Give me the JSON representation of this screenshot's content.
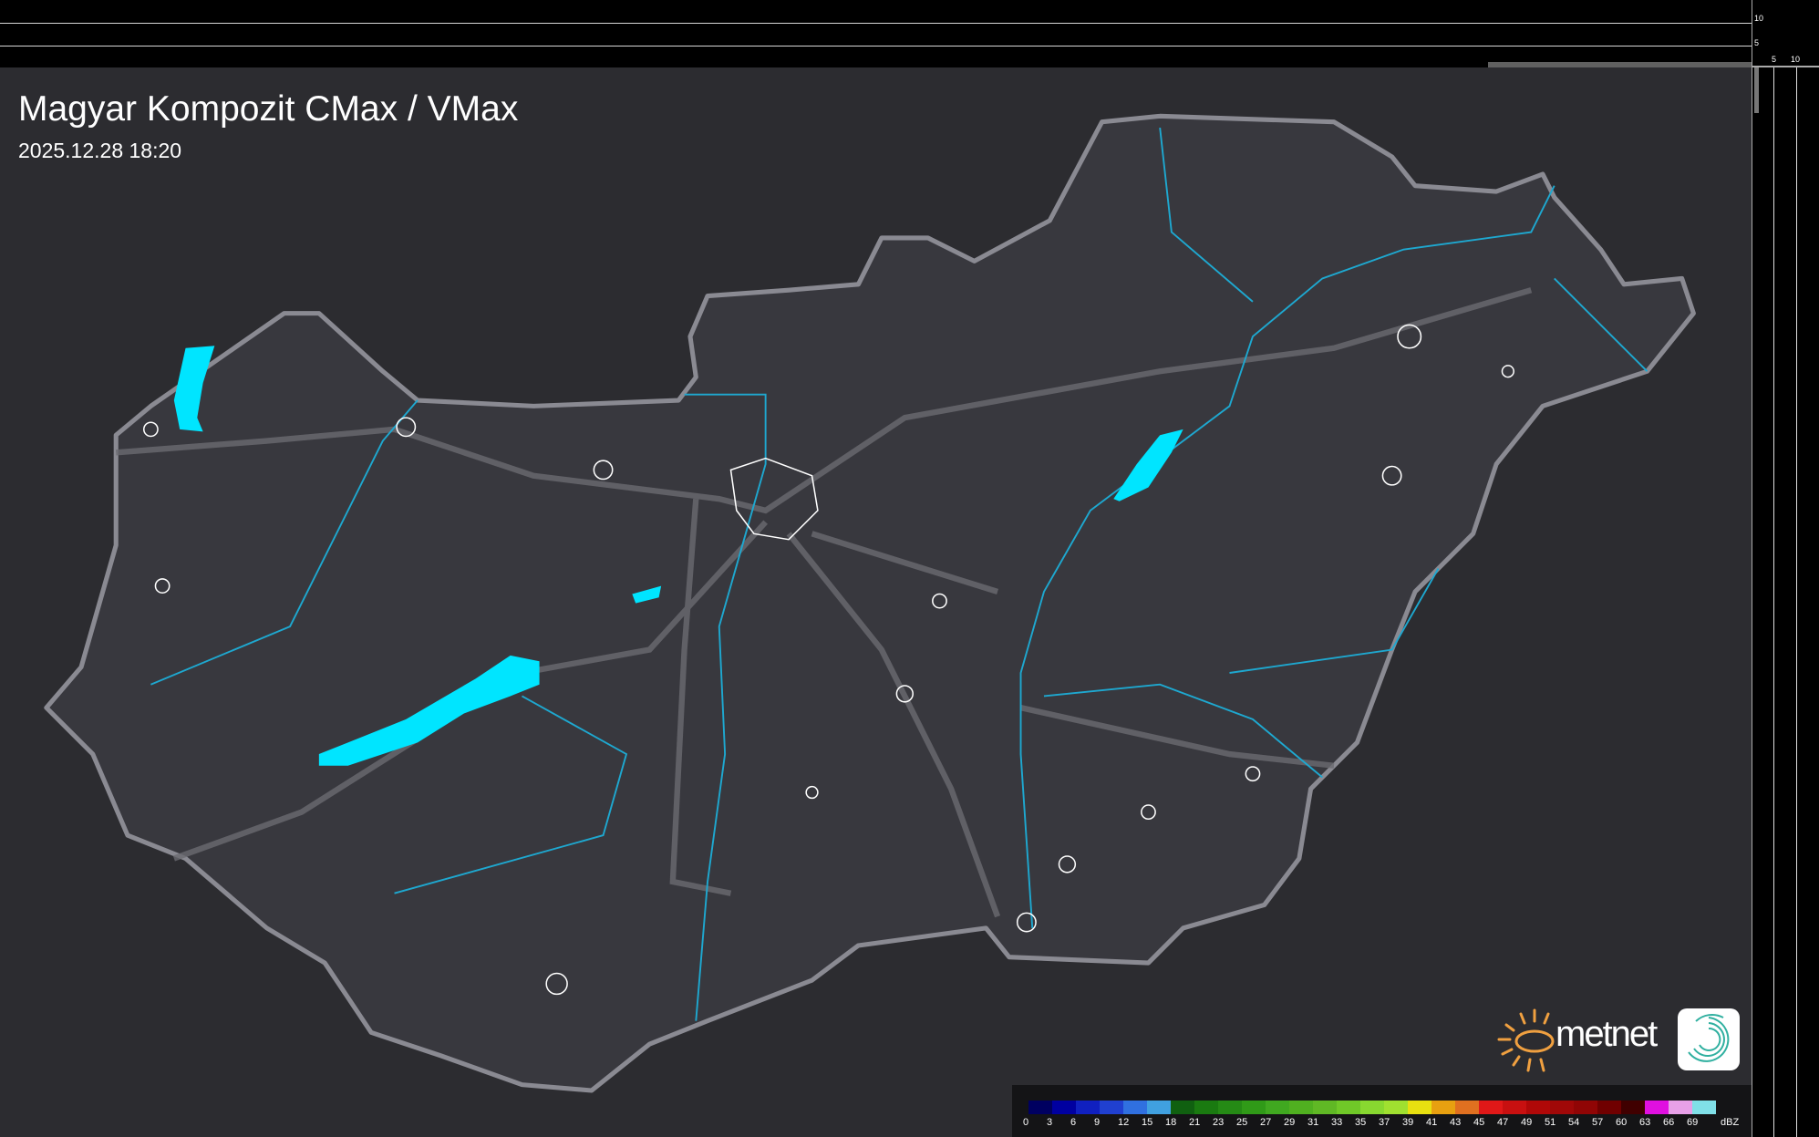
{
  "header": {
    "title": "Magyar Kompozit CMax / VMax",
    "timestamp": "2025.12.28 18:20"
  },
  "side_profiles": {
    "top_ticks": [
      "10",
      "5"
    ],
    "right_ticks": [
      "5",
      "10"
    ]
  },
  "map": {
    "region": "Hungary",
    "colors": {
      "background": "#2c2c30",
      "country_fill": "#3a3a40",
      "border": "#8a8a90",
      "rivers": "#1ea8d0",
      "lakes": "#00e5ff",
      "settlements": "#ffffff",
      "roads": "#6a6a70"
    }
  },
  "legend": {
    "unit": "dBZ",
    "labels": [
      "0",
      "3",
      "6",
      "9",
      "12",
      "15",
      "18",
      "21",
      "23",
      "25",
      "27",
      "29",
      "31",
      "33",
      "35",
      "37",
      "39",
      "41",
      "43",
      "45",
      "47",
      "49",
      "51",
      "54",
      "57",
      "60",
      "63",
      "66",
      "69"
    ],
    "colors": [
      "#000060",
      "#0000a0",
      "#1020c0",
      "#2040d0",
      "#3070e0",
      "#40a0e0",
      "#106010",
      "#1a7a10",
      "#258a15",
      "#309a18",
      "#40a820",
      "#50b020",
      "#60b825",
      "#70c828",
      "#88d830",
      "#a0e030",
      "#e8e010",
      "#e8a010",
      "#e07020",
      "#e01818",
      "#c81010",
      "#b00808",
      "#a00808",
      "#900505",
      "#700000",
      "#400000",
      "#e010e0",
      "#e8a0e8",
      "#80e0e8"
    ]
  },
  "logo": {
    "brand": "metnet",
    "sun_color": "#f0a040",
    "app_icon_color": "#30b0a0"
  }
}
